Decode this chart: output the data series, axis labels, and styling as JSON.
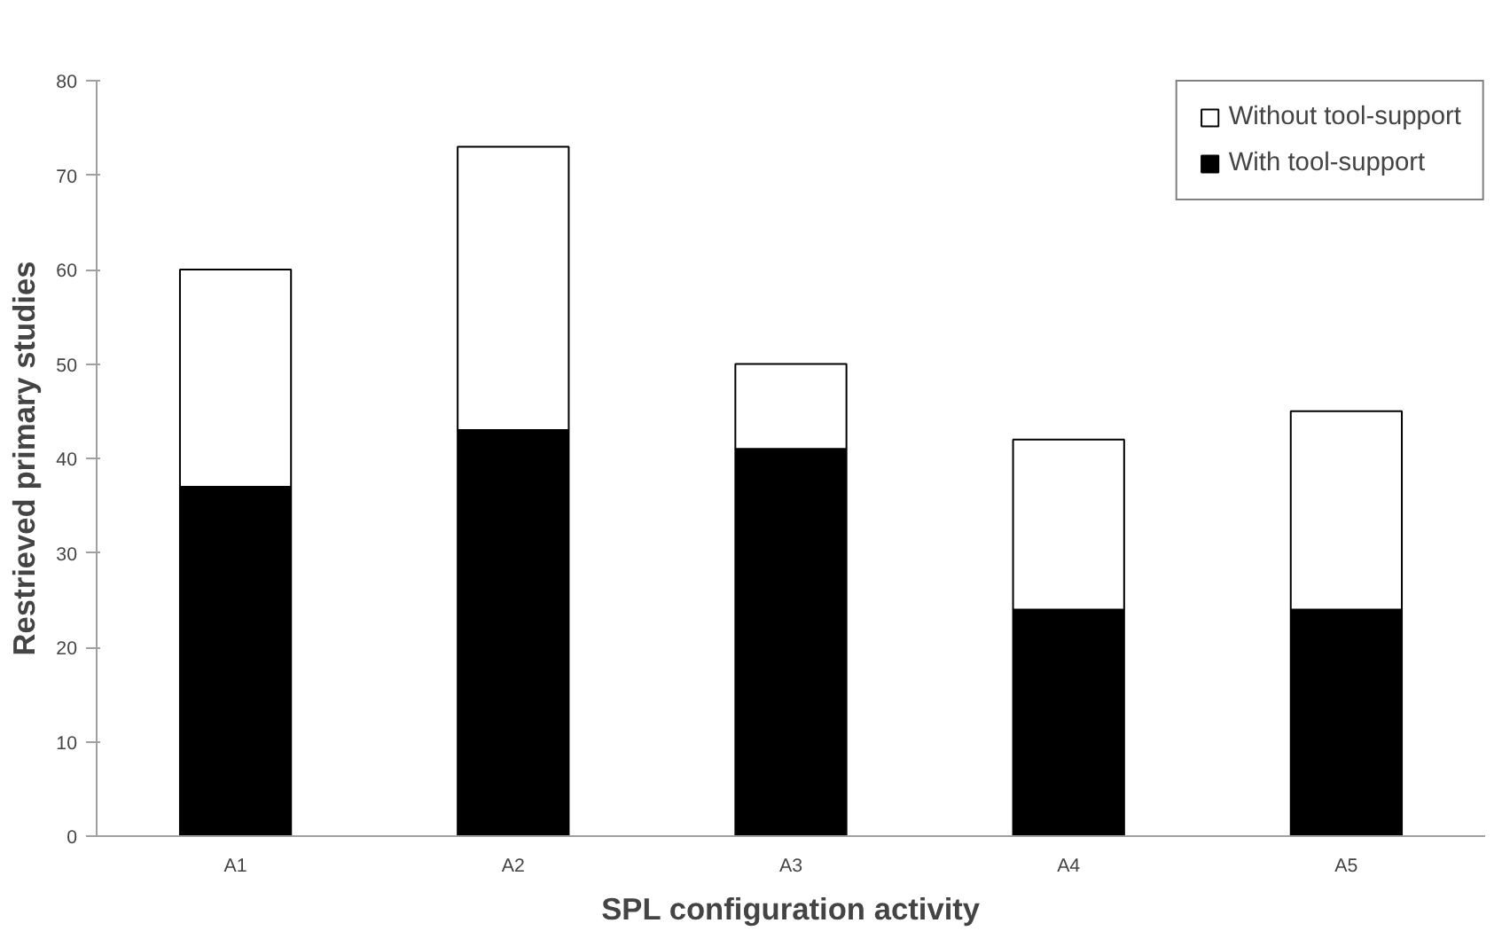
{
  "chart_data": {
    "type": "bar",
    "stacked": true,
    "xlabel": "SPL configuration activity",
    "ylabel": "Restrieved primary studies",
    "categories": [
      "A1",
      "A2",
      "A3",
      "A4",
      "A5"
    ],
    "series": [
      {
        "name": "With tool-support",
        "color": "#000000",
        "values": [
          37,
          43,
          41,
          24,
          24
        ]
      },
      {
        "name": "Without tool-support",
        "color": "#ffffff",
        "values": [
          23,
          30,
          9,
          18,
          21
        ]
      }
    ],
    "ylim": [
      0,
      80
    ],
    "yticks": [
      0,
      10,
      20,
      30,
      40,
      50,
      60,
      70,
      80
    ],
    "grid": false,
    "legend": "top right"
  }
}
